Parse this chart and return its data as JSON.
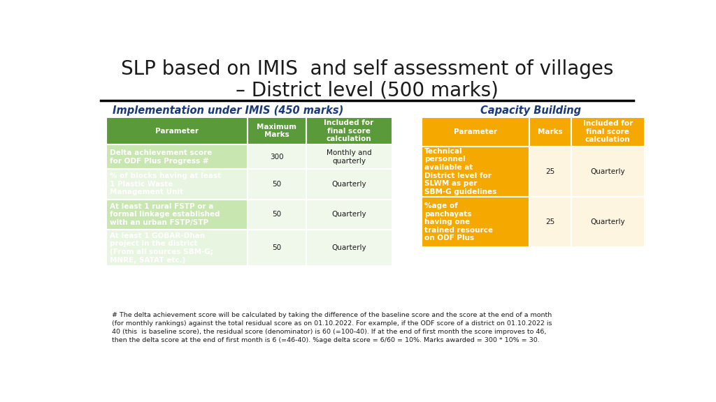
{
  "title_line1": "SLP based on IMIS  and self assessment of villages",
  "title_line2": "– District level (500 marks)",
  "left_section_title": "Implementation under IMIS (450 marks)",
  "right_section_title": "Capacity Building",
  "left_table_headers": [
    "Parameter",
    "Maximum\nMarks",
    "Included for\nfinal score\ncalculation"
  ],
  "left_table_rows": [
    [
      "Delta achievement score\nfor ODF Plus Progress #",
      "300",
      "Monthly and\nquarterly"
    ],
    [
      "% of blocks having at least\n1 Plastic Waste\nManagement Unit",
      "50",
      "Quarterly"
    ],
    [
      "At least 1 rural FSTP or a\nformal linkage established\nwith an urban FSTP/STP",
      "50",
      "Quarterly"
    ],
    [
      "At least 1 GOBAR-Dhan\nproject in the district\n(From all sources SBM-G;\nMNRE, SATAT etc.)",
      "50",
      "Quarterly"
    ]
  ],
  "right_table_headers": [
    "Parameter",
    "Marks",
    "Included for\nfinal score\ncalculation"
  ],
  "right_table_rows": [
    [
      "Technical\npersonnel\navailable at\nDistrict level for\nSLWM as per\nSBM-G guidelines",
      "25",
      "Quarterly"
    ],
    [
      "%age of\npanchayats\nhaving one\ntrained resource\non ODF Plus",
      "25",
      "Quarterly"
    ]
  ],
  "left_header_bg": "#5a9a3a",
  "left_header_text": "#ffffff",
  "left_row_odd_bg": "#c8e6b0",
  "left_row_even_bg": "#e8f5e0",
  "left_row_col23_bg": "#f0f8eb",
  "right_header_bg": "#f5a800",
  "right_header_text": "#ffffff",
  "right_row_col0_bg": "#f5a800",
  "right_row_col23_bg": "#fef5e0",
  "footnote": "# The delta achievement score will be calculated by taking the difference of the baseline score and the score at the end of a month\n(for monthly rankings) against the total residual score as on 01.10.2022. For example, if the ODF score of a district on 01.10.2022 is\n40 (this  is baseline score), the residual score (denominator) is 60 (=100-40). If at the end of first month the score improves to 46,\nthen the delta score at the end of first month is 6 (=46-40). %age delta score = 6/60 = 10%. Marks awarded = 300 * 10% = 30.",
  "background_color": "#ffffff"
}
